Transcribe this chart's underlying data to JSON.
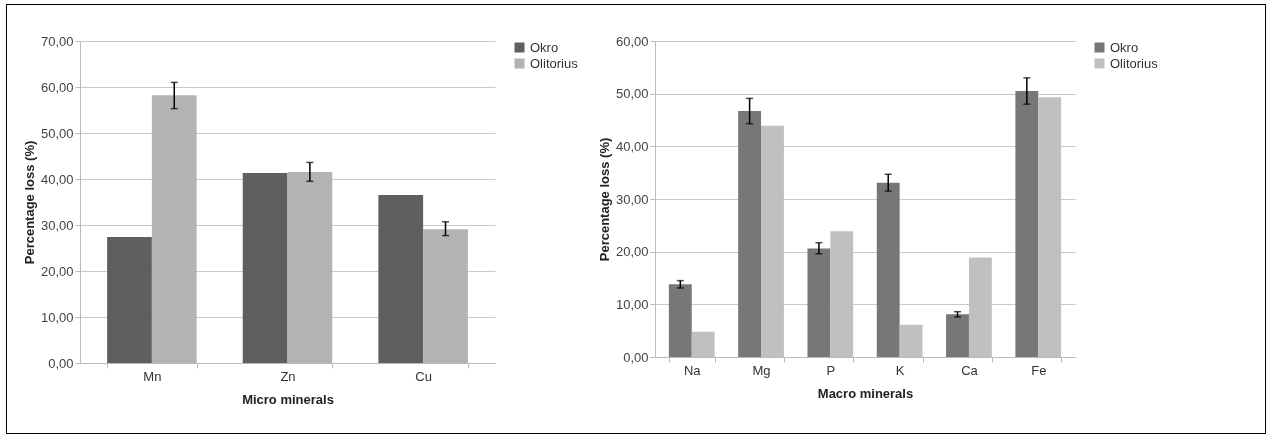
{
  "chart_data": [
    {
      "type": "bar",
      "xlabel": "Micro minerals",
      "ylabel": "Percentage loss (%)",
      "categories": [
        "Mn",
        "Zn",
        "Cu"
      ],
      "ylim": [
        0,
        70
      ],
      "yticks": [
        {
          "value": 0,
          "label": "0,00"
        },
        {
          "value": 10,
          "label": "10,00"
        },
        {
          "value": 20,
          "label": "20,00"
        },
        {
          "value": 30,
          "label": "30,00"
        },
        {
          "value": 40,
          "label": "40,00"
        },
        {
          "value": 50,
          "label": "50,00"
        },
        {
          "value": 60,
          "label": "60,00"
        },
        {
          "value": 70,
          "label": "70,00"
        }
      ],
      "grid": "y",
      "legend": "right",
      "series": [
        {
          "name": "Okro",
          "color": "#5f5f5f",
          "values": [
            27.4,
            41.3,
            36.5
          ]
        },
        {
          "name": "Olitorius",
          "color": "#b3b3b3",
          "values": [
            58.2,
            41.5,
            29.1
          ],
          "errors": [
            [
              55.3,
              61.0
            ],
            [
              39.5,
              43.6
            ],
            [
              27.7,
              30.7
            ]
          ]
        }
      ]
    },
    {
      "type": "bar",
      "xlabel": "Macro minerals",
      "ylabel": "Percentage loss (%)",
      "categories": [
        "Na",
        "Mg",
        "P",
        "K",
        "Ca",
        "Fe"
      ],
      "ylim": [
        0,
        60
      ],
      "yticks": [
        {
          "value": 0,
          "label": "0,00"
        },
        {
          "value": 10,
          "label": "10,00"
        },
        {
          "value": 20,
          "label": "20,00"
        },
        {
          "value": 30,
          "label": "30,00"
        },
        {
          "value": 40,
          "label": "40,00"
        },
        {
          "value": 50,
          "label": "50,00"
        },
        {
          "value": 60,
          "label": "60,00"
        }
      ],
      "grid": "y",
      "legend": "right",
      "series": [
        {
          "name": "Okro",
          "color": "#777777",
          "values": [
            13.8,
            46.7,
            20.6,
            33.1,
            8.1,
            50.5
          ],
          "errors": [
            [
              13.1,
              14.5
            ],
            [
              44.3,
              49.1
            ],
            [
              19.6,
              21.7
            ],
            [
              31.5,
              34.7
            ],
            [
              7.6,
              8.6
            ],
            [
              48.0,
              53.0
            ]
          ]
        },
        {
          "name": "Olitorius",
          "color": "#c0c0c0",
          "values": [
            4.8,
            43.9,
            23.9,
            6.1,
            18.9,
            49.3
          ]
        }
      ]
    }
  ]
}
